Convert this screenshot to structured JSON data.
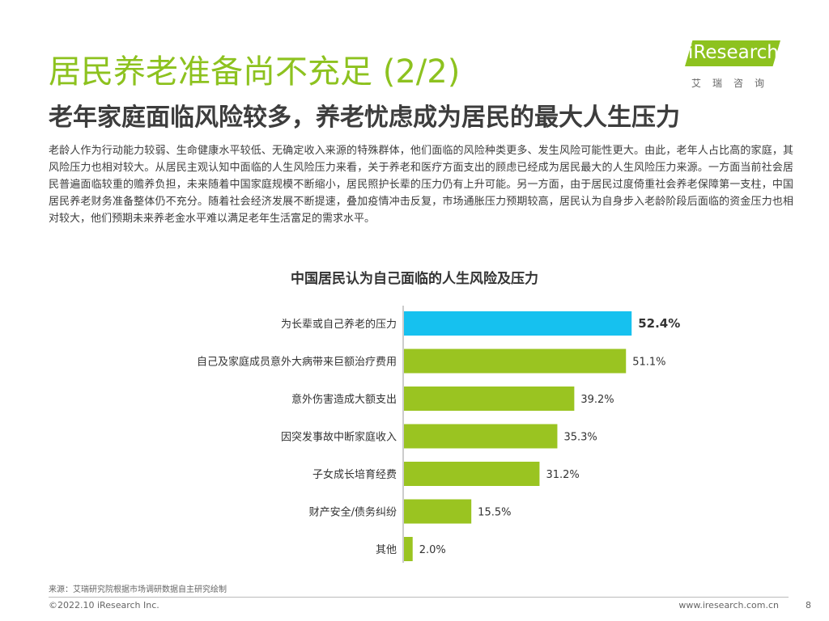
{
  "page": {
    "title": "居民养老准备尚不充足 (2/2)",
    "subtitle": "老年家庭面临风险较多，养老忧虑成为居民的最大人生压力",
    "body": "老龄人作为行动能力较弱、生命健康水平较低、无确定收入来源的特殊群体，他们面临的风险种类更多、发生风险可能性更大。由此，老年人占比高的家庭，其风险压力也相对较大。从居民主观认知中面临的人生风险压力来看，关于养老和医疗方面支出的顾虑已经成为居民最大的人生风险压力来源。一方面当前社会居民普遍面临较重的赡养负担，未来随着中国家庭规模不断缩小，居民照护长辈的压力仍有上升可能。另一方面，由于居民过度倚重社会养老保障第一支柱，中国居民养老财务准备整体仍不充分。随着社会经济发展不断提速，叠加疫情冲击反复，市场通胀压力预期较高，居民认为自身步入老龄阶段后面临的资金压力也相对较大，他们预期未来养老金水平难以满足老年生活富足的需求水平。"
  },
  "logo": {
    "name": "iResearch",
    "cn": "艾瑞咨询"
  },
  "footer": {
    "source": "来源：艾瑞研究院根据市场调研数据自主研究绘制",
    "copyright": "©2022.10 iResearch Inc.",
    "website": "www.iresearch.com.cn",
    "page_number": "8"
  },
  "colors": {
    "brand_green": "#8dc21f",
    "bar_green": "#9ac421",
    "highlight_blue": "#16c1ef"
  },
  "chart_data": {
    "type": "bar",
    "orientation": "horizontal",
    "title": "中国居民认为自己面临的人生风险及压力",
    "categories": [
      "为长辈或自己养老的压力",
      "自己及家庭成员意外大病带来巨额治疗费用",
      "意外伤害造成大额支出",
      "因突发事故中断家庭收入",
      "子女成长培育经费",
      "财产安全/债务纠纷",
      "其他"
    ],
    "values": [
      52.4,
      51.1,
      39.2,
      35.3,
      31.2,
      15.5,
      2.0
    ],
    "labels": [
      "52.4%",
      "51.1%",
      "39.2%",
      "35.3%",
      "31.2%",
      "15.5%",
      "2.0%"
    ],
    "highlight_index": 0,
    "unit": "%",
    "xlim": [
      0,
      60
    ]
  }
}
